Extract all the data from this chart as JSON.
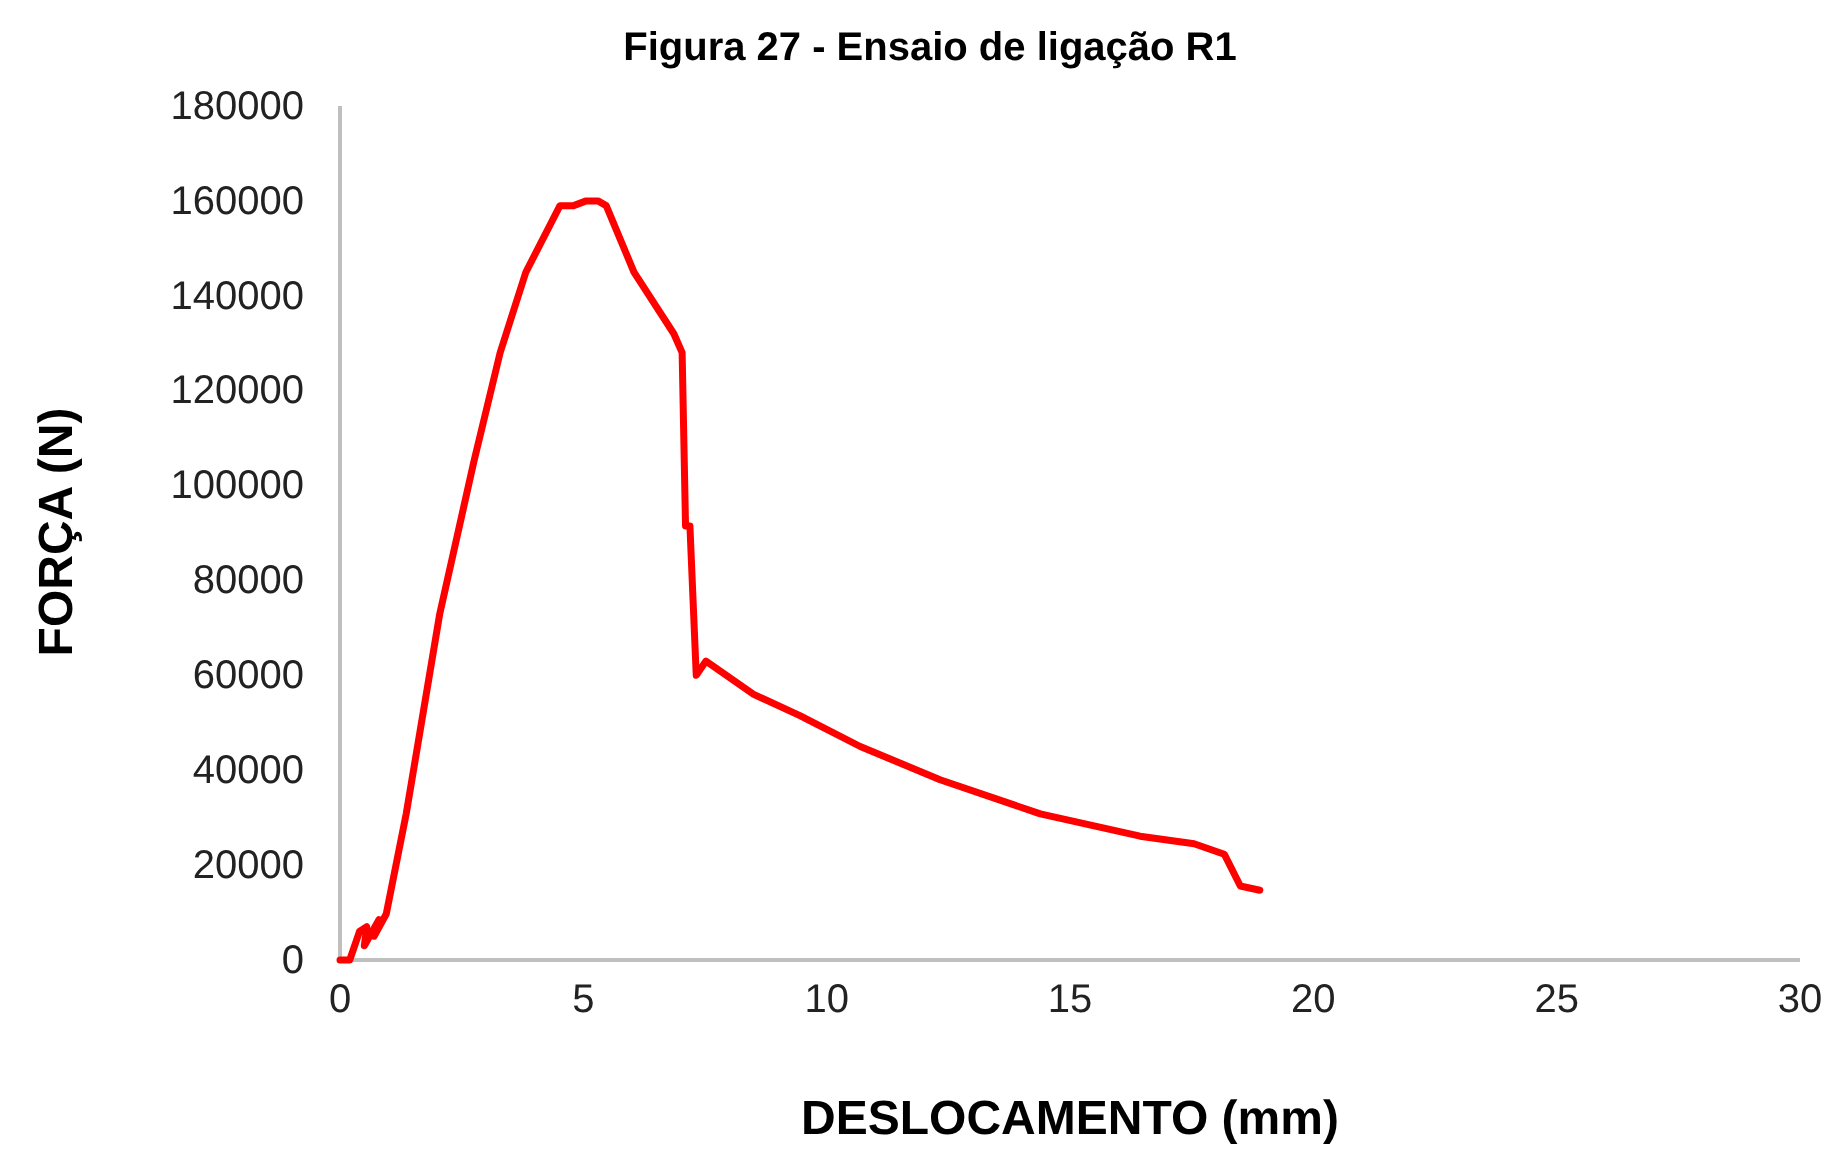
{
  "chart_data": {
    "type": "line",
    "title": "Figura 27 - Ensaio de ligação R1",
    "xlabel": "DESLOCAMENTO (mm)",
    "ylabel": "FORÇA (N)",
    "xlim": [
      0,
      30
    ],
    "xticks": [
      0,
      5,
      10,
      15,
      20,
      25,
      30
    ],
    "ylim": [
      0,
      180000
    ],
    "yticks": [
      0,
      20000,
      40000,
      60000,
      80000,
      100000,
      120000,
      140000,
      160000,
      180000
    ],
    "grid": false,
    "marker": "none",
    "line_style": "solid",
    "series": [
      {
        "color": "#ff0000",
        "x": [
          0,
          0.2,
          0.4,
          0.55,
          0.5,
          0.8,
          0.7,
          0.95,
          1.36,
          2.05,
          2.75,
          3.29,
          3.82,
          4.52,
          4.8,
          5.06,
          5.3,
          5.47,
          6.04,
          6.86,
          7.03,
          7.1,
          7.19,
          7.32,
          7.52,
          8.5,
          9.45,
          10.69,
          12.33,
          14.39,
          16.44,
          17.55,
          18.17,
          18.5,
          18.9
        ],
        "values": [
          0,
          0,
          6000,
          7000,
          3000,
          8500,
          5000,
          9700,
          30800,
          73000,
          105000,
          128000,
          145000,
          159000,
          159000,
          160000,
          160000,
          159000,
          145000,
          132000,
          128000,
          91500,
          91500,
          60000,
          63000,
          56000,
          51500,
          45000,
          38000,
          30800,
          26100,
          24500,
          22300,
          15600,
          14700
        ]
      }
    ]
  }
}
